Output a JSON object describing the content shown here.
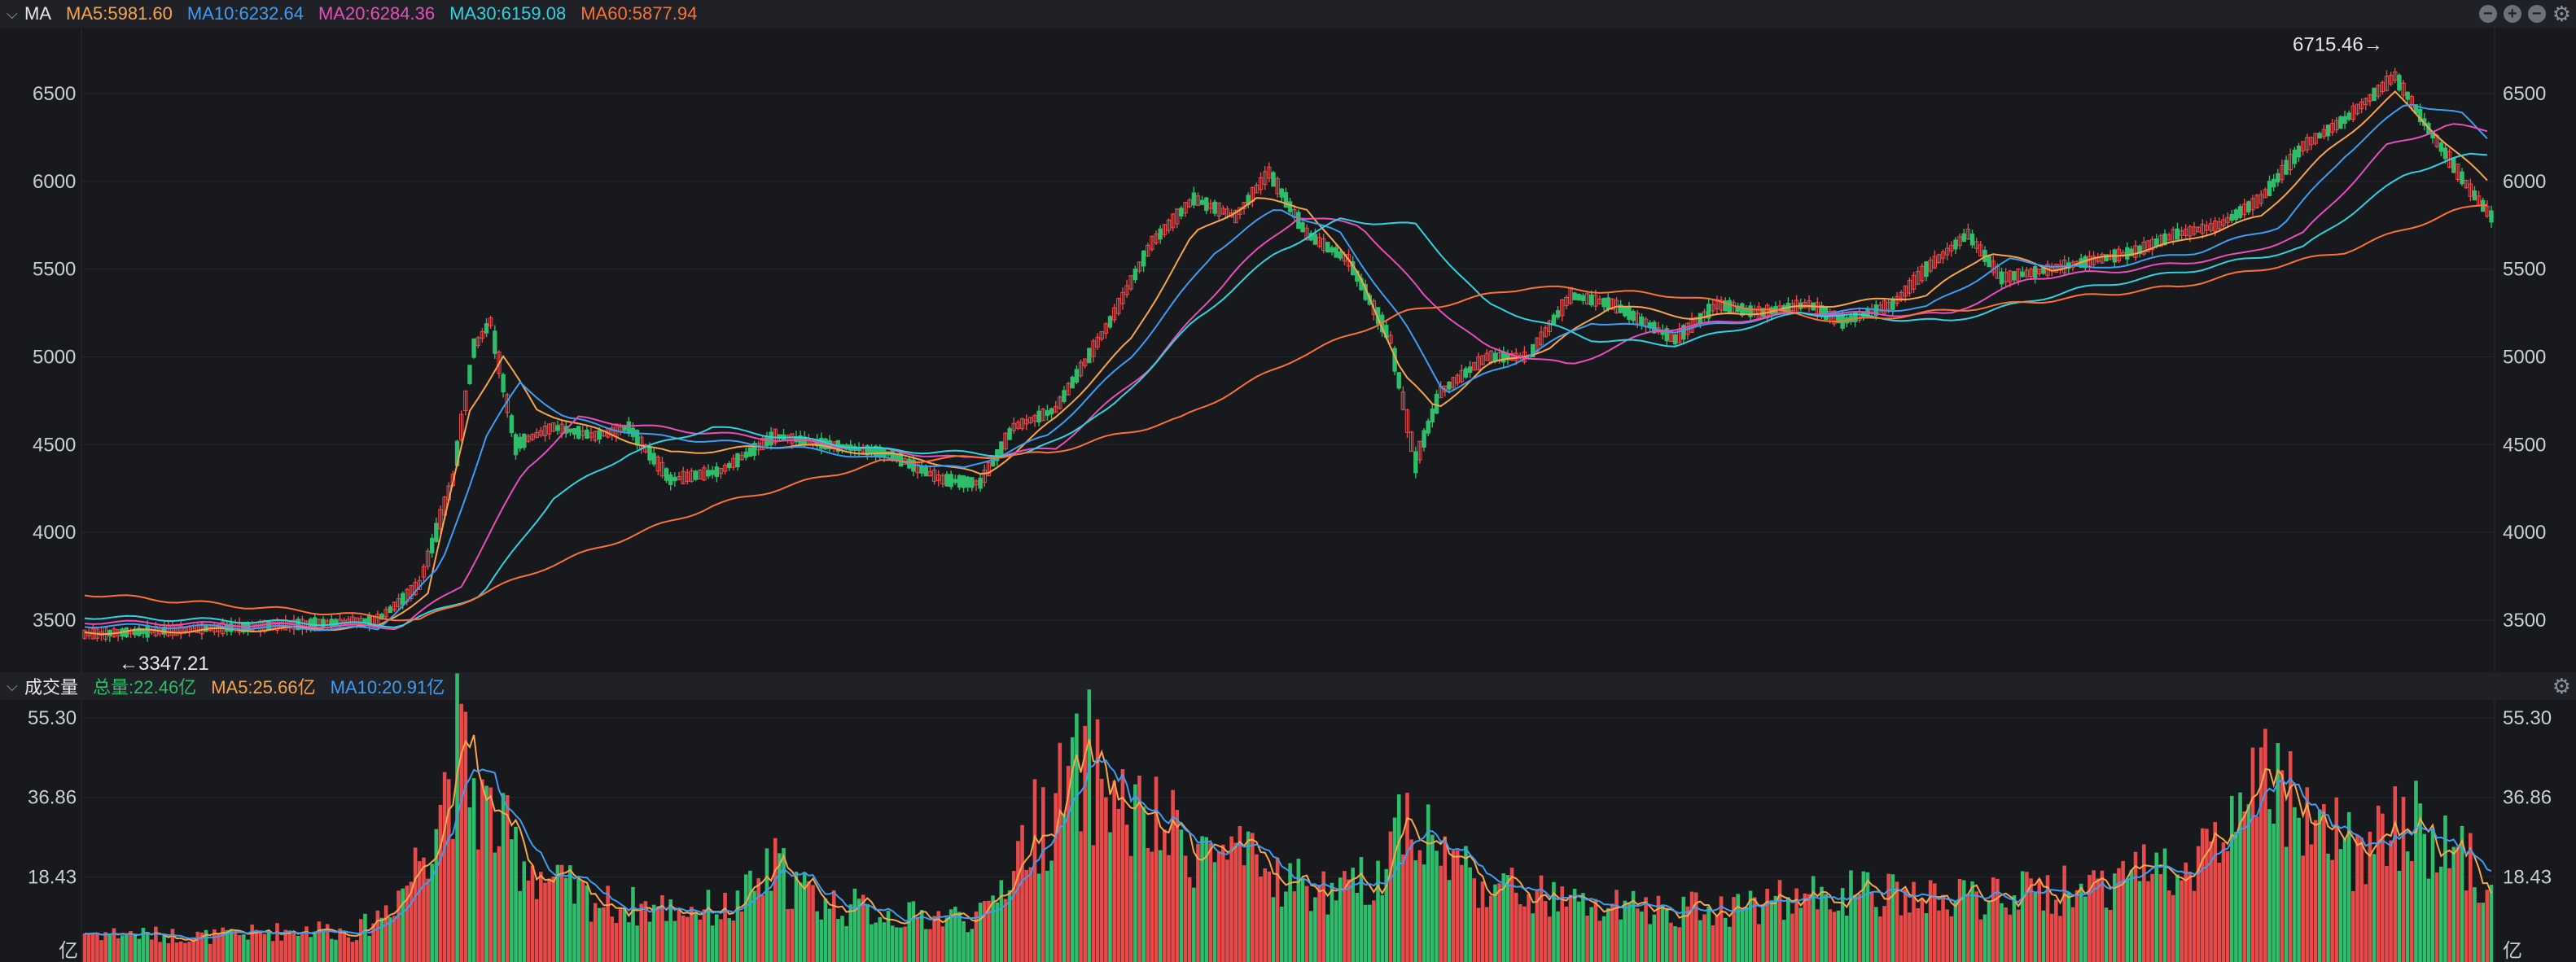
{
  "price_panel": {
    "title": "MA",
    "legend": [
      {
        "label": "MA5:5981.60",
        "color": "#f7a54a"
      },
      {
        "label": "MA10:6232.64",
        "color": "#3d9df2"
      },
      {
        "label": "MA20:6284.36",
        "color": "#e64fb7"
      },
      {
        "label": "MA30:6159.08",
        "color": "#2fd3e0"
      },
      {
        "label": "MA60:5877.94",
        "color": "#fb7232"
      }
    ],
    "tools": [
      "minus-circle-icon",
      "plus-circle-icon",
      "minus-circle-icon",
      "gear-icon"
    ]
  },
  "volume_panel": {
    "title": "成交量",
    "legend": [
      {
        "label": "总量:22.46亿",
        "color": "#2ebd6b"
      },
      {
        "label": "MA5:25.66亿",
        "color": "#f7a54a"
      },
      {
        "label": "MA10:20.91亿",
        "color": "#3d9df2"
      }
    ],
    "unit": "亿"
  },
  "colors": {
    "up": "#e84a4a",
    "down": "#2ebd6b",
    "background": "#18191d"
  },
  "chart_data": [
    {
      "type": "candlestick",
      "y_ticks": [
        "6500",
        "6000",
        "5500",
        "5000",
        "4500",
        "4000",
        "3500"
      ],
      "ylim": [
        3300,
        6800
      ],
      "grid": true,
      "annotations": [
        {
          "text": "6715.46→",
          "value": 6715.46,
          "position": "high"
        },
        {
          "text": "←3347.21",
          "value": 3347.21,
          "position": "low"
        }
      ],
      "close_path": [
        [
          0,
          3420
        ],
        [
          28,
          3450
        ],
        [
          55,
          3480
        ],
        [
          70,
          3500
        ],
        [
          80,
          3700
        ],
        [
          88,
          4300
        ],
        [
          93,
          5050
        ],
        [
          97,
          5200
        ],
        [
          103,
          4500
        ],
        [
          112,
          4600
        ],
        [
          122,
          4550
        ],
        [
          130,
          4600
        ],
        [
          140,
          4300
        ],
        [
          152,
          4350
        ],
        [
          165,
          4550
        ],
        [
          178,
          4500
        ],
        [
          192,
          4450
        ],
        [
          205,
          4300
        ],
        [
          214,
          4280
        ],
        [
          222,
          4600
        ],
        [
          232,
          4700
        ],
        [
          245,
          5200
        ],
        [
          255,
          5650
        ],
        [
          265,
          5900
        ],
        [
          275,
          5800
        ],
        [
          283,
          6050
        ],
        [
          292,
          5700
        ],
        [
          302,
          5550
        ],
        [
          312,
          5100
        ],
        [
          318,
          4400
        ],
        [
          324,
          4800
        ],
        [
          335,
          5000
        ],
        [
          345,
          5000
        ],
        [
          355,
          5350
        ],
        [
          365,
          5300
        ],
        [
          380,
          5100
        ],
        [
          390,
          5300
        ],
        [
          400,
          5250
        ],
        [
          412,
          5300
        ],
        [
          420,
          5200
        ],
        [
          432,
          5300
        ],
        [
          440,
          5500
        ],
        [
          450,
          5700
        ],
        [
          458,
          5450
        ],
        [
          470,
          5500
        ],
        [
          480,
          5550
        ],
        [
          490,
          5600
        ],
        [
          500,
          5700
        ],
        [
          510,
          5750
        ],
        [
          520,
          5900
        ],
        [
          530,
          6200
        ],
        [
          540,
          6350
        ],
        [
          552,
          6600
        ],
        [
          560,
          6300
        ],
        [
          570,
          5950
        ],
        [
          575,
          5800
        ]
      ],
      "ma_paths": [
        {
          "name": "MA5",
          "color": "#f7a54a",
          "points": [
            [
              0,
              3430
            ],
            [
              70,
              3460
            ],
            [
              82,
              3650
            ],
            [
              92,
              4700
            ],
            [
              100,
              5000
            ],
            [
              108,
              4700
            ],
            [
              120,
              4600
            ],
            [
              140,
              4450
            ],
            [
              170,
              4500
            ],
            [
              200,
              4420
            ],
            [
              215,
              4320
            ],
            [
              232,
              4650
            ],
            [
              250,
              5100
            ],
            [
              265,
              5700
            ],
            [
              280,
              5900
            ],
            [
              292,
              5850
            ],
            [
              305,
              5450
            ],
            [
              315,
              4900
            ],
            [
              323,
              4700
            ],
            [
              335,
              4950
            ],
            [
              350,
              5050
            ],
            [
              365,
              5300
            ],
            [
              385,
              5220
            ],
            [
              410,
              5280
            ],
            [
              440,
              5350
            ],
            [
              455,
              5600
            ],
            [
              470,
              5500
            ],
            [
              500,
              5650
            ],
            [
              520,
              5800
            ],
            [
              535,
              6150
            ],
            [
              552,
              6500
            ],
            [
              565,
              6200
            ],
            [
              575,
              5980
            ]
          ]
        },
        {
          "name": "MA10",
          "color": "#3d9df2",
          "points": [
            [
              0,
              3470
            ],
            [
              70,
              3450
            ],
            [
              85,
              3800
            ],
            [
              96,
              4550
            ],
            [
              104,
              4850
            ],
            [
              115,
              4650
            ],
            [
              135,
              4550
            ],
            [
              170,
              4480
            ],
            [
              210,
              4360
            ],
            [
              230,
              4550
            ],
            [
              250,
              5000
            ],
            [
              270,
              5600
            ],
            [
              285,
              5850
            ],
            [
              300,
              5700
            ],
            [
              315,
              5200
            ],
            [
              325,
              4800
            ],
            [
              340,
              4950
            ],
            [
              360,
              5200
            ],
            [
              380,
              5150
            ],
            [
              410,
              5250
            ],
            [
              440,
              5280
            ],
            [
              460,
              5550
            ],
            [
              480,
              5500
            ],
            [
              505,
              5600
            ],
            [
              525,
              5750
            ],
            [
              540,
              6150
            ],
            [
              555,
              6450
            ],
            [
              568,
              6380
            ],
            [
              575,
              6230
            ]
          ]
        },
        {
          "name": "MA20",
          "color": "#e64fb7",
          "points": [
            [
              0,
              3490
            ],
            [
              75,
              3460
            ],
            [
              90,
              3700
            ],
            [
              105,
              4350
            ],
            [
              118,
              4650
            ],
            [
              135,
              4600
            ],
            [
              170,
              4520
            ],
            [
              210,
              4420
            ],
            [
              232,
              4480
            ],
            [
              255,
              4950
            ],
            [
              275,
              5500
            ],
            [
              290,
              5800
            ],
            [
              305,
              5750
            ],
            [
              320,
              5350
            ],
            [
              335,
              5050
            ],
            [
              355,
              4950
            ],
            [
              375,
              5150
            ],
            [
              410,
              5250
            ],
            [
              445,
              5240
            ],
            [
              465,
              5450
            ],
            [
              490,
              5500
            ],
            [
              515,
              5580
            ],
            [
              530,
              5700
            ],
            [
              550,
              6200
            ],
            [
              565,
              6320
            ],
            [
              575,
              6290
            ]
          ]
        },
        {
          "name": "MA30",
          "color": "#2fd3e0",
          "points": [
            [
              0,
              3520
            ],
            [
              75,
              3470
            ],
            [
              95,
              3650
            ],
            [
              112,
              4200
            ],
            [
              130,
              4450
            ],
            [
              150,
              4600
            ],
            [
              190,
              4470
            ],
            [
              225,
              4440
            ],
            [
              245,
              4700
            ],
            [
              265,
              5200
            ],
            [
              285,
              5600
            ],
            [
              300,
              5780
            ],
            [
              318,
              5750
            ],
            [
              335,
              5300
            ],
            [
              360,
              5100
            ],
            [
              380,
              5070
            ],
            [
              410,
              5250
            ],
            [
              445,
              5200
            ],
            [
              475,
              5380
            ],
            [
              505,
              5500
            ],
            [
              530,
              5620
            ],
            [
              555,
              6050
            ],
            [
              570,
              6150
            ],
            [
              575,
              6160
            ]
          ]
        },
        {
          "name": "MA60",
          "color": "#fb7232",
          "points": [
            [
              0,
              3650
            ],
            [
              80,
              3500
            ],
            [
              110,
              3800
            ],
            [
              150,
              4150
            ],
            [
              190,
              4400
            ],
            [
              230,
              4450
            ],
            [
              262,
              4650
            ],
            [
              290,
              5000
            ],
            [
              315,
              5250
            ],
            [
              345,
              5400
            ],
            [
              380,
              5350
            ],
            [
              420,
              5200
            ],
            [
              460,
              5300
            ],
            [
              500,
              5400
            ],
            [
              540,
              5600
            ],
            [
              565,
              5820
            ],
            [
              575,
              5880
            ]
          ]
        }
      ]
    },
    {
      "type": "bar",
      "y_ticks": [
        "55.30",
        "36.86",
        "18.43"
      ],
      "ylim": [
        0,
        56
      ],
      "unit": "亿",
      "path": [
        [
          0,
          6
        ],
        [
          30,
          5
        ],
        [
          55,
          7
        ],
        [
          65,
          6
        ],
        [
          70,
          10
        ],
        [
          78,
          20
        ],
        [
          84,
          38
        ],
        [
          89,
          52
        ],
        [
          94,
          40
        ],
        [
          100,
          30
        ],
        [
          112,
          18
        ],
        [
          125,
          13
        ],
        [
          140,
          12
        ],
        [
          155,
          12
        ],
        [
          165,
          22
        ],
        [
          175,
          14
        ],
        [
          195,
          10
        ],
        [
          215,
          10
        ],
        [
          225,
          30
        ],
        [
          240,
          48
        ],
        [
          250,
          35
        ],
        [
          265,
          28
        ],
        [
          285,
          20
        ],
        [
          300,
          15
        ],
        [
          310,
          22
        ],
        [
          315,
          38
        ],
        [
          322,
          28
        ],
        [
          335,
          18
        ],
        [
          360,
          12
        ],
        [
          390,
          12
        ],
        [
          420,
          16
        ],
        [
          445,
          14
        ],
        [
          470,
          16
        ],
        [
          495,
          22
        ],
        [
          512,
          30
        ],
        [
          520,
          44
        ],
        [
          532,
          32
        ],
        [
          545,
          25
        ],
        [
          555,
          35
        ],
        [
          570,
          22
        ],
        [
          575,
          22
        ]
      ]
    }
  ]
}
